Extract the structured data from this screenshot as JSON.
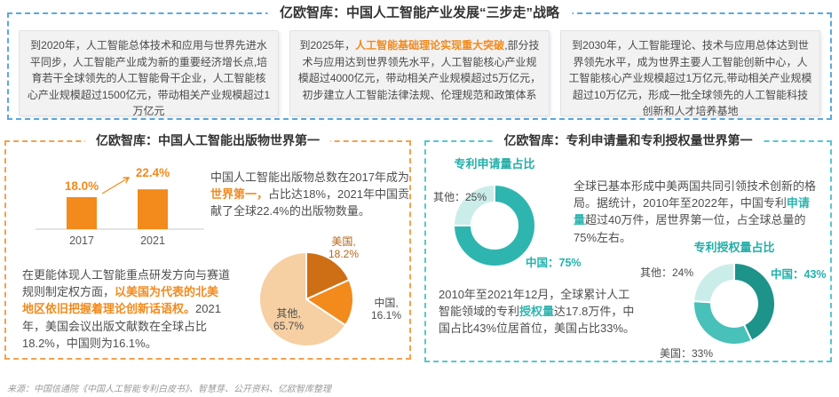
{
  "page": {
    "source_note": "来源：中国信通院《中国人工智能专利白皮书》、智慧芽、公开资料、亿欧智库整理"
  },
  "top_section": {
    "title": "亿欧智库：中国人工智能产业发展“三步走”战略",
    "cards": [
      {
        "parts": [
          {
            "text": "到2020年，人工智能总体技术和应用与世界先进水平同步，人工智能产业成为新的重要经济增长点,培育若干全球领先的人工智能骨干企业，人工智能核心产业规模超过1500亿元，带动相关产业规模超过1万亿元",
            "style": "normal"
          }
        ]
      },
      {
        "parts": [
          {
            "text": "到2025年，",
            "style": "normal"
          },
          {
            "text": "人工智能基础理论实现重大突破",
            "style": "orange-bold"
          },
          {
            "text": ",部分技术与应用达到世界领先水平，人工智能核心产业规模超过4000亿元，带动相关产业规模超过5万亿元，初步建立人工智能法律法规、伦理规范和政策体系",
            "style": "normal"
          }
        ]
      },
      {
        "parts": [
          {
            "text": "到2030年，人工智能理论、技术与应用总体达到世界领先水平，成为世界主要人工智能创新中心，人工智能核心产业规模超过1万亿元,带动相关产业规模超过10万亿元，形成一批全球领先的人工智能科技创新和人才培养基地",
            "style": "normal"
          }
        ]
      }
    ]
  },
  "left_section": {
    "title": "亿欧智库：中国人工智能出版物世界第一",
    "para1": {
      "parts": [
        {
          "text": "中国人工智能出版物总数在2017年成为",
          "style": "normal"
        },
        {
          "text": "世界第一，",
          "style": "orange-bold"
        },
        {
          "text": "占比达18%，2021年中国贡献了全球22.4%的出版物数量。",
          "style": "normal"
        }
      ]
    },
    "para2": {
      "parts": [
        {
          "text": "在更能体现人工智能重点研发方向与赛道规则制定权方面，",
          "style": "normal"
        },
        {
          "text": "以美国为代表的北美地区依旧把握着理论创新话语权。",
          "style": "orange-bold"
        },
        {
          "text": "2021年，美国会议出版文献数在全球占比18.2%，中国则为16.1%。",
          "style": "normal"
        }
      ]
    }
  },
  "right_section": {
    "title": "亿欧智库：专利申请量和专利授权量世界第一",
    "para1": {
      "parts": [
        {
          "text": "全球已基本形成中美两国共同引领技术创新的格局。据统计，2010年至2022年，中国专利",
          "style": "normal"
        },
        {
          "text": "申请量",
          "style": "teal-bold"
        },
        {
          "text": "超过40万件，居世界第一位，占全球总量的75%左右。",
          "style": "normal"
        }
      ]
    },
    "para2": {
      "parts": [
        {
          "text": "2010年至2021年12月，全球累计人工智能领域的专利",
          "style": "normal"
        },
        {
          "text": "授权量",
          "style": "teal-bold"
        },
        {
          "text": "达17.8万件，中国占比43%位居首位，美国占比33%。",
          "style": "normal"
        }
      ]
    }
  },
  "colors": {
    "blue_dash": "#5AA9E0",
    "orange_dash": "#F5A04D",
    "teal_dash": "#55C8CE",
    "orange": "#F28A1C",
    "dark_orange": "#CE6E15",
    "peach": "#F6CFA2",
    "teal": "#2FB5AF",
    "dark_teal": "#1E938A",
    "mid_teal": "#47C1B9",
    "light_teal": "#CBEDEA"
  },
  "chart_data": [
    {
      "id": "publications-bar",
      "type": "bar",
      "categories": [
        "2017",
        "2021"
      ],
      "values": [
        18.0,
        22.4
      ],
      "value_labels": [
        "18.0%",
        "22.4%"
      ],
      "bar_color": "#F28A1C",
      "ylim": [
        0,
        30
      ],
      "trend_arrow": true
    },
    {
      "id": "publications-pie",
      "type": "pie",
      "slices": [
        {
          "name": "美国",
          "value": 18.2,
          "color": "#CE6E15",
          "line1": "美国,",
          "line2": "18.2%"
        },
        {
          "name": "中国",
          "value": 16.1,
          "color": "#F28A1C",
          "line1": "中国,",
          "line2": "16.1%"
        },
        {
          "name": "其他",
          "value": 65.7,
          "color": "#F6CFA2",
          "line1": "其他,",
          "line2": "65.7%"
        }
      ]
    },
    {
      "id": "patent-applications-donut",
      "type": "donut",
      "title": "专利申请量占比",
      "slices": [
        {
          "name": "中国",
          "value": 75,
          "color": "#2FB5AF",
          "display_label": "中国：75%"
        },
        {
          "name": "其他",
          "value": 25,
          "color": "#CBEDEA",
          "display_label": "其他：25%"
        }
      ]
    },
    {
      "id": "patent-grants-donut",
      "type": "donut",
      "title": "专利授权量占比",
      "slices": [
        {
          "name": "中国",
          "value": 43,
          "color": "#1E938A",
          "display_label": "中国：43%"
        },
        {
          "name": "美国",
          "value": 33,
          "color": "#47C1B9",
          "display_label": "美国：33%"
        },
        {
          "name": "其他",
          "value": 24,
          "color": "#CBEDEA",
          "display_label": "其他：24%"
        }
      ]
    }
  ]
}
